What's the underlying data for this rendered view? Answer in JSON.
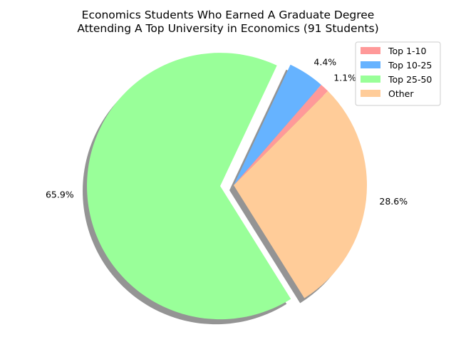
{
  "chart_data": {
    "type": "pie",
    "title_lines": [
      "Economics Students Who Earned A Graduate Degree",
      "Attending A Top University in Economics (91 Students)"
    ],
    "slices": [
      {
        "label": "Top 1-10",
        "value": 1.1,
        "pct_label": "1.1%",
        "color": "#ff9999",
        "exploded": false
      },
      {
        "label": "Top 10-25",
        "value": 4.4,
        "pct_label": "4.4%",
        "color": "#66b3ff",
        "exploded": false
      },
      {
        "label": "Top 25-50",
        "value": 65.9,
        "pct_label": "65.9%",
        "color": "#99ff99",
        "exploded": true
      },
      {
        "label": "Other",
        "value": 28.6,
        "pct_label": "28.6%",
        "color": "#ffcc99",
        "exploded": false
      }
    ],
    "start_angle_deg": 45,
    "shadow": true,
    "legend_position": "top-right"
  }
}
